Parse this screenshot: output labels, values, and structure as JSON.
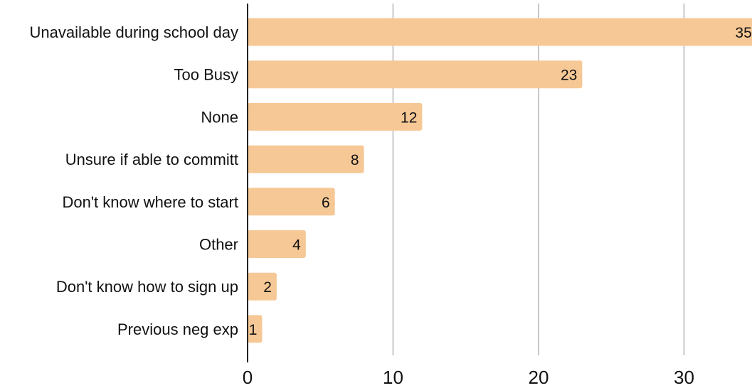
{
  "chart_data": {
    "type": "bar",
    "orientation": "horizontal",
    "categories": [
      "Unavailable during school day",
      "Too Busy",
      "None",
      "Unsure if able to committ",
      "Don't know where to start",
      "Other",
      "Don't know how to sign up",
      "Previous neg exp"
    ],
    "values": [
      35,
      23,
      12,
      8,
      6,
      4,
      2,
      1
    ],
    "xticks": [
      0,
      10,
      20,
      30
    ],
    "xlim": [
      0,
      35
    ],
    "title": "",
    "xlabel": "",
    "ylabel": "",
    "grid": "vertical",
    "legend": "none",
    "colors": {
      "bar": "#f6c896",
      "grid": "#c8c8c8",
      "axis": "#222222",
      "text": "#111111"
    }
  }
}
